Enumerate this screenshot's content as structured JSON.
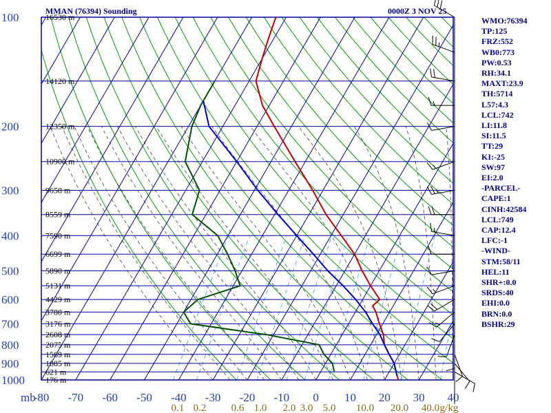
{
  "title": "MMAN (76394) Sounding",
  "time_label": "0000Z  3 NOV 25",
  "station_stats": [
    "WMO:76394",
    "TP:125",
    "FRZ:552",
    "WB0:773",
    "PW:0.53",
    "RH:34.1",
    "MAXT:23.9",
    "TH:5714",
    "L57:4.3",
    "LCL:742",
    "LI:11.8",
    "SI:11.5",
    "TT:29",
    "KI:-25",
    "SW:97",
    "EI:2.0",
    "-PARCEL-",
    "CAPE:1",
    "CINH:42584",
    "LCL:749",
    "CAP:12.4",
    "LFC:-1",
    "-WIND-",
    "STM:58/11",
    "HEL:11",
    "SHR+:0.0",
    "SRDS:40",
    "EHI:0.0",
    "BRN:0.0",
    "BSHR:29"
  ],
  "colors": {
    "grid": "#0000a0",
    "axis_text": "#1f3fbf",
    "temperature": "#c00000",
    "dewpoint": "#005000",
    "parcel": "#0000c0",
    "dry_adiabat": "#00a000",
    "moist_adiabat": "#404040",
    "mixing_ratio": "#3399ff",
    "mixing_ratio_text": "#8b6914",
    "wind_barb": "#000000"
  },
  "chart_data": {
    "type": "line",
    "title": "MMAN (76394) Sounding",
    "pressure_levels_hpa": [
      100,
      200,
      300,
      400,
      500,
      600,
      700,
      800,
      900,
      1000
    ],
    "pressure_tick_labels": [
      "100",
      "200",
      "300",
      "400",
      "500",
      "600",
      "700",
      "800",
      "900",
      "1000"
    ],
    "height_labels": [
      {
        "p": 100,
        "text": "16530 m"
      },
      {
        "p": 150,
        "text": "14120 m"
      },
      {
        "p": 200,
        "text": "12350 m"
      },
      {
        "p": 250,
        "text": "10900 m"
      },
      {
        "p": 300,
        "text": "9658 m"
      },
      {
        "p": 350,
        "text": "8559 m"
      },
      {
        "p": 400,
        "text": "7590 m"
      },
      {
        "p": 450,
        "text": "6699 m"
      },
      {
        "p": 500,
        "text": "5890 m"
      },
      {
        "p": 550,
        "text": "5131 m"
      },
      {
        "p": 600,
        "text": "4429 m"
      },
      {
        "p": 650,
        "text": "3780 m"
      },
      {
        "p": 700,
        "text": "3176 m"
      },
      {
        "p": 750,
        "text": "2608 m"
      },
      {
        "p": 800,
        "text": "2075 m"
      },
      {
        "p": 850,
        "text": "1569 m"
      },
      {
        "p": 900,
        "text": "1085 m"
      },
      {
        "p": 950,
        "text": "621 m"
      },
      {
        "p": 1000,
        "text": "176 m"
      }
    ],
    "x_unit_label": "mb",
    "x_ticks": [
      -80,
      -70,
      -60,
      -50,
      -40,
      -30,
      -20,
      -10,
      0,
      10,
      20,
      30,
      40
    ],
    "x_tick_labels": [
      "-80",
      "-70",
      "-60",
      "-50",
      "-40",
      "-30",
      "-20",
      "-10",
      "0",
      "10",
      "20",
      "30",
      "40"
    ],
    "mixing_ratio_labels": [
      "0.1",
      "0.2",
      "0.6",
      "1.0",
      "2.0",
      "3.0",
      "5.0",
      "10.0",
      "20.0",
      "40.0",
      "g/kg"
    ],
    "series": [
      {
        "key": "temperature",
        "points": [
          {
            "p": 100,
            "t": -73
          },
          {
            "p": 110,
            "t": -72
          },
          {
            "p": 120,
            "t": -71
          },
          {
            "p": 130,
            "t": -70
          },
          {
            "p": 150,
            "t": -68
          },
          {
            "p": 175,
            "t": -62
          },
          {
            "p": 200,
            "t": -55
          },
          {
            "p": 250,
            "t": -43
          },
          {
            "p": 300,
            "t": -33
          },
          {
            "p": 350,
            "t": -25
          },
          {
            "p": 400,
            "t": -17
          },
          {
            "p": 450,
            "t": -10
          },
          {
            "p": 500,
            "t": -5
          },
          {
            "p": 550,
            "t": 0
          },
          {
            "p": 600,
            "t": 5
          },
          {
            "p": 625,
            "t": 4
          },
          {
            "p": 650,
            "t": 6
          },
          {
            "p": 700,
            "t": 9
          },
          {
            "p": 750,
            "t": 12
          },
          {
            "p": 800,
            "t": 14
          },
          {
            "p": 850,
            "t": 17
          },
          {
            "p": 900,
            "t": 20
          },
          {
            "p": 950,
            "t": 22
          },
          {
            "p": 1000,
            "t": 24
          }
        ]
      },
      {
        "key": "dewpoint",
        "points": [
          {
            "p": 150,
            "t": -80
          },
          {
            "p": 175,
            "t": -80
          },
          {
            "p": 200,
            "t": -79
          },
          {
            "p": 250,
            "t": -75
          },
          {
            "p": 300,
            "t": -66
          },
          {
            "p": 350,
            "t": -64
          },
          {
            "p": 400,
            "t": -53
          },
          {
            "p": 450,
            "t": -47
          },
          {
            "p": 500,
            "t": -42
          },
          {
            "p": 550,
            "t": -38
          },
          {
            "p": 600,
            "t": -48
          },
          {
            "p": 650,
            "t": -50
          },
          {
            "p": 700,
            "t": -46
          },
          {
            "p": 750,
            "t": -22
          },
          {
            "p": 800,
            "t": -5
          },
          {
            "p": 850,
            "t": -2
          },
          {
            "p": 900,
            "t": 2
          },
          {
            "p": 950,
            "t": 4
          }
        ]
      },
      {
        "key": "parcel",
        "points": [
          {
            "p": 170,
            "t": -80
          },
          {
            "p": 200,
            "t": -74
          },
          {
            "p": 250,
            "t": -60
          },
          {
            "p": 300,
            "t": -49
          },
          {
            "p": 350,
            "t": -39
          },
          {
            "p": 400,
            "t": -30
          },
          {
            "p": 450,
            "t": -22
          },
          {
            "p": 500,
            "t": -15
          },
          {
            "p": 550,
            "t": -8
          },
          {
            "p": 600,
            "t": -2
          },
          {
            "p": 650,
            "t": 3
          },
          {
            "p": 700,
            "t": 7
          },
          {
            "p": 750,
            "t": 11
          },
          {
            "p": 800,
            "t": 14
          },
          {
            "p": 850,
            "t": 17
          },
          {
            "p": 900,
            "t": 20
          },
          {
            "p": 950,
            "t": 22
          },
          {
            "p": 975,
            "t": 23
          }
        ]
      }
    ],
    "wind_barbs": [
      {
        "p": 100,
        "dir": 300,
        "spd": 30
      },
      {
        "p": 125,
        "dir": 290,
        "spd": 25
      },
      {
        "p": 150,
        "dir": 280,
        "spd": 20
      },
      {
        "p": 175,
        "dir": 270,
        "spd": 15
      },
      {
        "p": 200,
        "dir": 260,
        "spd": 10
      },
      {
        "p": 250,
        "dir": 250,
        "spd": 15
      },
      {
        "p": 300,
        "dir": 260,
        "spd": 25
      },
      {
        "p": 350,
        "dir": 270,
        "spd": 20
      },
      {
        "p": 400,
        "dir": 280,
        "spd": 15
      },
      {
        "p": 450,
        "dir": 270,
        "spd": 10
      },
      {
        "p": 500,
        "dir": 260,
        "spd": 10
      },
      {
        "p": 550,
        "dir": 250,
        "spd": 15
      },
      {
        "p": 600,
        "dir": 240,
        "spd": 20
      },
      {
        "p": 650,
        "dir": 230,
        "spd": 15
      },
      {
        "p": 700,
        "dir": 220,
        "spd": 10
      },
      {
        "p": 750,
        "dir": 200,
        "spd": 10
      },
      {
        "p": 800,
        "dir": 180,
        "spd": 10
      },
      {
        "p": 850,
        "dir": 160,
        "spd": 10
      },
      {
        "p": 900,
        "dir": 140,
        "spd": 10
      },
      {
        "p": 950,
        "dir": 120,
        "spd": 10
      }
    ],
    "skew": true,
    "grid": true
  }
}
